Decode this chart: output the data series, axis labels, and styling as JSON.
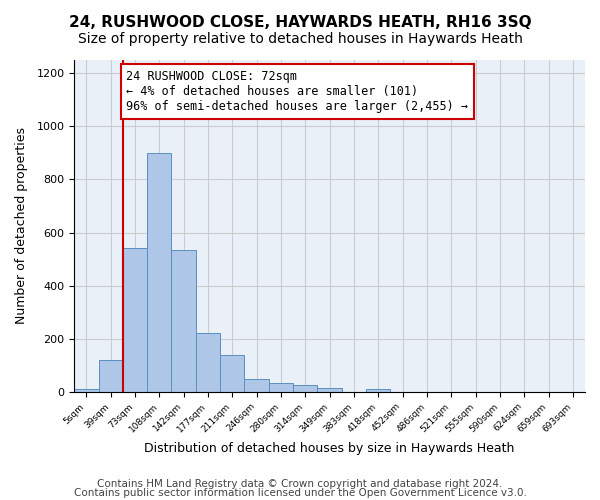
{
  "title1": "24, RUSHWOOD CLOSE, HAYWARDS HEATH, RH16 3SQ",
  "title2": "Size of property relative to detached houses in Haywards Heath",
  "xlabel": "Distribution of detached houses by size in Haywards Heath",
  "ylabel": "Number of detached properties",
  "footer1": "Contains HM Land Registry data © Crown copyright and database right 2024.",
  "footer2": "Contains public sector information licensed under the Open Government Licence v3.0.",
  "bin_labels": [
    "5sqm",
    "39sqm",
    "73sqm",
    "108sqm",
    "142sqm",
    "177sqm",
    "211sqm",
    "246sqm",
    "280sqm",
    "314sqm",
    "349sqm",
    "383sqm",
    "418sqm",
    "452sqm",
    "486sqm",
    "521sqm",
    "555sqm",
    "590sqm",
    "624sqm",
    "659sqm",
    "693sqm"
  ],
  "bar_values": [
    10,
    120,
    540,
    900,
    535,
    220,
    140,
    50,
    35,
    25,
    15,
    0,
    10,
    0,
    0,
    0,
    0,
    0,
    0,
    0,
    0
  ],
  "bar_color": "#aec6e8",
  "bar_edge_color": "#5a8fc2",
  "property_line_x": 2,
  "annotation_box_text": "24 RUSHWOOD CLOSE: 72sqm\n← 4% of detached houses are smaller (101)\n96% of semi-detached houses are larger (2,455) →",
  "ylim": [
    0,
    1250
  ],
  "yticks": [
    0,
    200,
    400,
    600,
    800,
    1000,
    1200
  ],
  "grid_color": "#cccccc",
  "bg_color": "#eaf0f8",
  "fig_bg_color": "#ffffff",
  "red_line_color": "#cc0000",
  "box_edge_color": "#cc0000",
  "title1_fontsize": 11,
  "title2_fontsize": 10,
  "xlabel_fontsize": 9,
  "ylabel_fontsize": 9,
  "footer_fontsize": 7.5,
  "annotation_fontsize": 8.5,
  "tick_fontsize": 6.5
}
